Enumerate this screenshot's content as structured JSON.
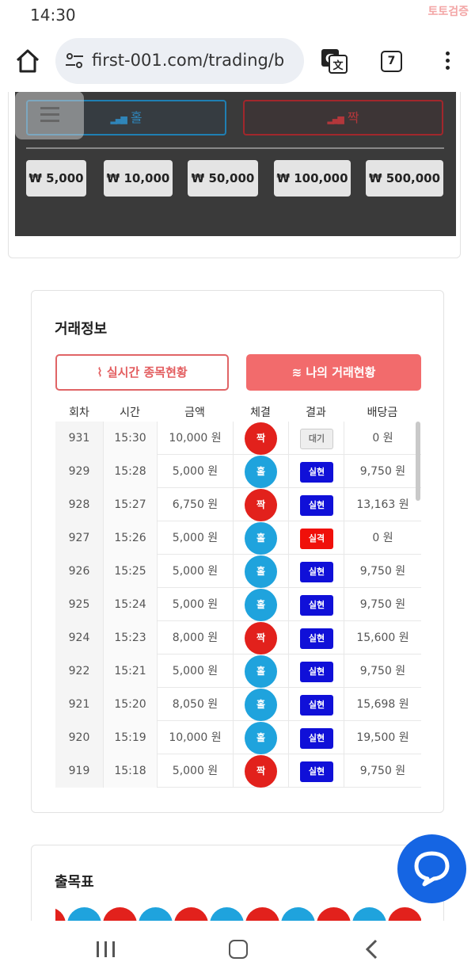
{
  "status_bar": {
    "time": "14:30",
    "watermark": "토토검증"
  },
  "browser": {
    "url": "first-001.com/trading/b",
    "tab_count": "7"
  },
  "bet_panel": {
    "hol_label": "홀",
    "jjak_label": "짝",
    "chips": [
      "₩ 5,000",
      "₩ 10,000",
      "₩ 50,000",
      "₩ 100,000",
      "₩ 500,000"
    ]
  },
  "trade_info": {
    "title": "거래정보",
    "live_button": "실시간 종목현황",
    "mine_button": "나의 거래현황",
    "columns": [
      "회차",
      "시간",
      "금액",
      "체결",
      "결과",
      "배당금"
    ],
    "rows": [
      {
        "round": "931",
        "time": "15:30",
        "amount": "10,000 원",
        "pick": "짝",
        "pick_color": "red",
        "result": "대기",
        "result_type": "wait",
        "payout": "0 원"
      },
      {
        "round": "929",
        "time": "15:28",
        "amount": "5,000 원",
        "pick": "홀",
        "pick_color": "blue",
        "result": "실현",
        "result_type": "win",
        "payout": "9,750 원"
      },
      {
        "round": "928",
        "time": "15:27",
        "amount": "6,750 원",
        "pick": "짝",
        "pick_color": "red",
        "result": "실현",
        "result_type": "win",
        "payout": "13,163 원"
      },
      {
        "round": "927",
        "time": "15:26",
        "amount": "5,000 원",
        "pick": "홀",
        "pick_color": "blue",
        "result": "실격",
        "result_type": "lose",
        "payout": "0 원"
      },
      {
        "round": "926",
        "time": "15:25",
        "amount": "5,000 원",
        "pick": "홀",
        "pick_color": "blue",
        "result": "실현",
        "result_type": "win",
        "payout": "9,750 원"
      },
      {
        "round": "925",
        "time": "15:24",
        "amount": "5,000 원",
        "pick": "홀",
        "pick_color": "blue",
        "result": "실현",
        "result_type": "win",
        "payout": "9,750 원"
      },
      {
        "round": "924",
        "time": "15:23",
        "amount": "8,000 원",
        "pick": "짝",
        "pick_color": "red",
        "result": "실현",
        "result_type": "win",
        "payout": "15,600 원"
      },
      {
        "round": "922",
        "time": "15:21",
        "amount": "5,000 원",
        "pick": "홀",
        "pick_color": "blue",
        "result": "실현",
        "result_type": "win",
        "payout": "9,750 원"
      },
      {
        "round": "921",
        "time": "15:20",
        "amount": "8,050 원",
        "pick": "홀",
        "pick_color": "blue",
        "result": "실현",
        "result_type": "win",
        "payout": "15,698 원"
      },
      {
        "round": "920",
        "time": "15:19",
        "amount": "10,000 원",
        "pick": "홀",
        "pick_color": "blue",
        "result": "실현",
        "result_type": "win",
        "payout": "19,500 원"
      },
      {
        "round": "919",
        "time": "15:18",
        "amount": "5,000 원",
        "pick": "짝",
        "pick_color": "red",
        "result": "실현",
        "result_type": "win",
        "payout": "9,750 원"
      }
    ]
  },
  "result_board": {
    "title": "출목표",
    "beads": [
      "red",
      "blue",
      "red",
      "blue",
      "red",
      "blue",
      "red",
      "blue",
      "red",
      "blue",
      "red"
    ]
  },
  "colors": {
    "red": "#e2211c",
    "blue": "#1fa3dd",
    "win": "#1010d8",
    "lose": "#f0100a",
    "accent": "#f26b6c",
    "chat": "#1565e3"
  }
}
